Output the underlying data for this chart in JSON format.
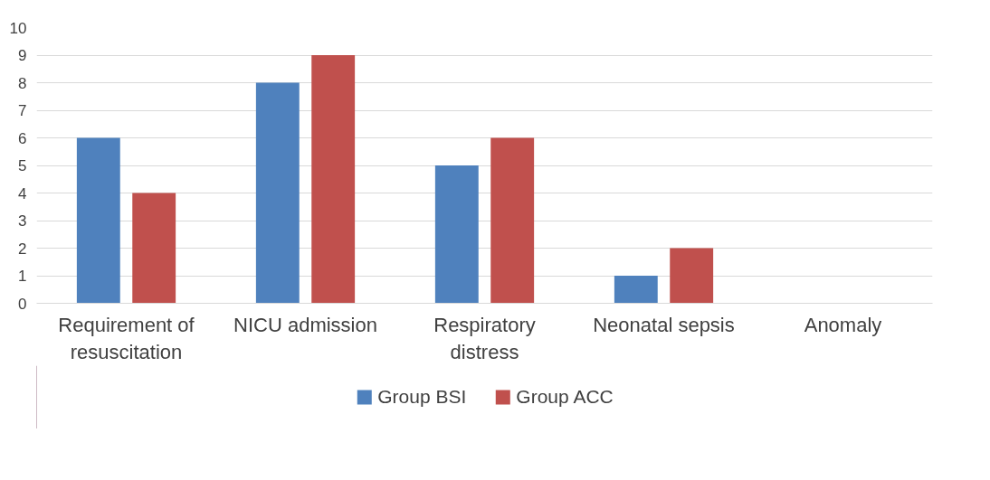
{
  "chart_data": {
    "type": "bar",
    "categories": [
      "Requirement of resuscitation",
      "NICU admission",
      "Respiratory distress",
      "Neonatal sepsis",
      "Anomaly"
    ],
    "series": [
      {
        "name": "Group BSI",
        "color": "#4f81bd",
        "values": [
          6,
          8,
          5,
          1,
          0
        ]
      },
      {
        "name": "Group ACC",
        "color": "#c0504d",
        "values": [
          4,
          9,
          6,
          2,
          0
        ]
      }
    ],
    "ylim": [
      0,
      10
    ],
    "yticks": [
      0,
      1,
      2,
      3,
      4,
      5,
      6,
      7,
      8,
      9,
      10
    ],
    "grid": "y",
    "legend": "bottom"
  }
}
